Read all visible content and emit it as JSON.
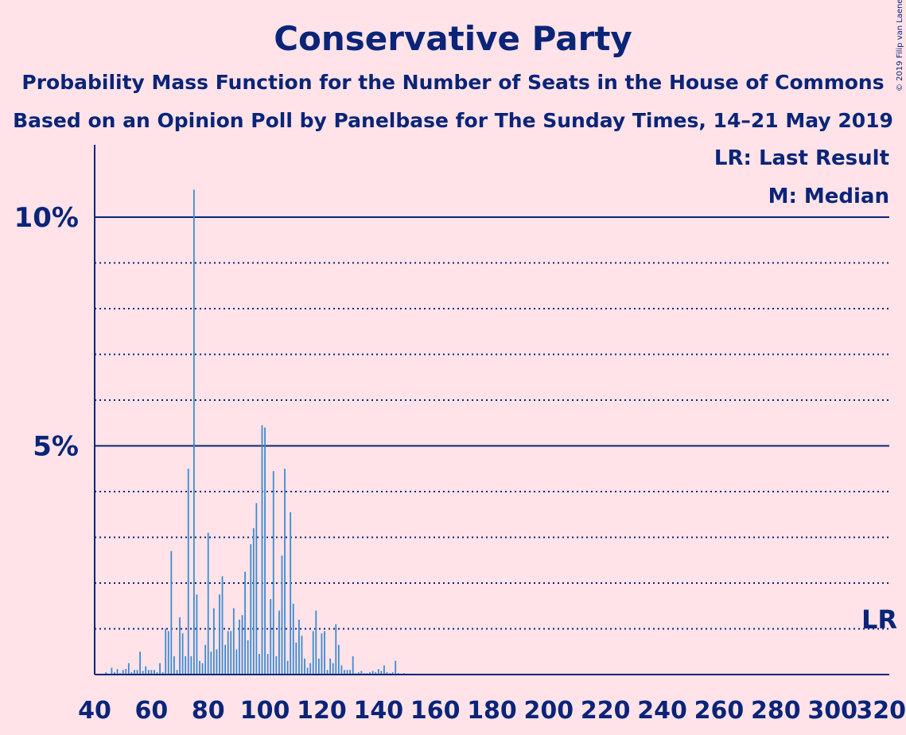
{
  "header": {
    "title": "Conservative Party",
    "subtitle1": "Probability Mass Function for the Number of Seats in the House of Commons",
    "subtitle2": "Based on an Opinion Poll by Panelbase for The Sunday Times, 14–21 May 2019",
    "copyright": "© 2019 Filip van Laenen"
  },
  "legend": {
    "last_result": "LR: Last Result",
    "median": "M: Median"
  },
  "colors": {
    "background": "#ffe3e8",
    "text": "#0a2478",
    "bar": "#3c8cd2"
  },
  "chart_data": {
    "type": "bar",
    "title": "Conservative Party",
    "xlabel": "",
    "ylabel": "",
    "xlim": [
      40,
      320
    ],
    "ylim": [
      0,
      11.5
    ],
    "x_ticks": [
      40,
      60,
      80,
      100,
      120,
      140,
      160,
      180,
      200,
      220,
      240,
      260,
      280,
      300,
      320
    ],
    "y_ticks": [
      {
        "value": 5,
        "label": "5%"
      },
      {
        "value": 10,
        "label": "10%"
      }
    ],
    "last_result_marker": {
      "x": 317,
      "label": "LR"
    },
    "x": [
      44,
      45,
      46,
      47,
      48,
      49,
      50,
      51,
      52,
      53,
      54,
      55,
      56,
      57,
      58,
      59,
      60,
      61,
      62,
      63,
      64,
      65,
      66,
      67,
      68,
      69,
      70,
      71,
      72,
      73,
      74,
      75,
      76,
      77,
      78,
      79,
      80,
      81,
      82,
      83,
      84,
      85,
      86,
      87,
      88,
      89,
      90,
      91,
      92,
      93,
      94,
      95,
      96,
      97,
      98,
      99,
      100,
      101,
      102,
      103,
      104,
      105,
      106,
      107,
      108,
      109,
      110,
      111,
      112,
      113,
      114,
      115,
      116,
      117,
      118,
      119,
      120,
      121,
      122,
      123,
      124,
      125,
      126,
      127,
      128,
      129,
      130,
      131,
      132,
      133,
      134,
      135,
      136,
      137,
      138,
      139,
      140,
      141,
      142,
      143,
      144,
      145,
      146,
      147,
      148,
      149,
      150,
      151,
      152
    ],
    "values": [
      0.05,
      0.02,
      0.15,
      0.05,
      0.12,
      0.03,
      0.1,
      0.12,
      0.25,
      0.05,
      0.1,
      0.1,
      0.5,
      0.08,
      0.18,
      0.1,
      0.1,
      0.1,
      0.05,
      0.25,
      0.05,
      1.0,
      0.95,
      2.7,
      0.4,
      0.1,
      1.25,
      0.9,
      0.4,
      4.5,
      0.4,
      10.6,
      1.75,
      0.3,
      0.25,
      0.65,
      3.1,
      0.5,
      1.45,
      0.55,
      1.75,
      2.15,
      0.65,
      0.95,
      0.95,
      1.45,
      0.55,
      1.2,
      1.3,
      2.25,
      0.75,
      2.85,
      3.2,
      3.75,
      0.45,
      5.45,
      5.4,
      0.45,
      1.65,
      4.45,
      0.4,
      1.4,
      2.6,
      4.5,
      0.3,
      3.55,
      1.55,
      0.7,
      1.2,
      0.85,
      0.35,
      0.15,
      0.25,
      0.95,
      1.4,
      0.35,
      0.9,
      0.95,
      0.1,
      0.35,
      0.25,
      1.1,
      0.65,
      0.2,
      0.1,
      0.1,
      0.1,
      0.4,
      0.03,
      0.05,
      0.08,
      0.03,
      0.03,
      0.05,
      0.08,
      0.05,
      0.12,
      0.08,
      0.2,
      0.05,
      0.03,
      0.05,
      0.3,
      0.03,
      0.02,
      0.03,
      0.02,
      0.02,
      0.02
    ]
  }
}
